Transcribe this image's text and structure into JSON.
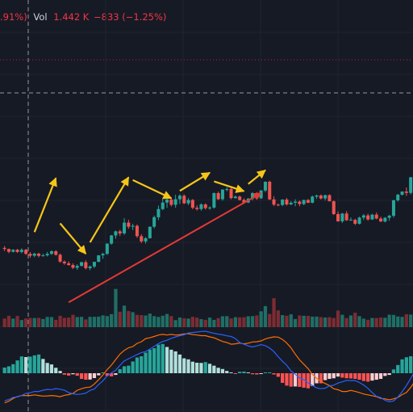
{
  "header": {
    "change_pct_fragment": ".91%)",
    "vol_label": "Vol",
    "vol_value": "1.442 K",
    "vol_change": "−833 (−1.25%)"
  },
  "colors": {
    "background": "#161a25",
    "grid": "#1f2430",
    "up": "#26a69a",
    "down": "#ef5350",
    "vol_up": "#1f6f66",
    "vol_down": "#7d2c33",
    "macd_line": "#2962ff",
    "signal_line": "#ff6d00",
    "hist_up_strong": "#26a69a",
    "hist_up_weak": "#b2dfdb",
    "hist_down_strong": "#ff5252",
    "hist_down_weak": "#ffcdd2",
    "annotation_yellow": "#f5c518",
    "annotation_red": "#e53935",
    "crosshair": "#9598a1",
    "price_level_dotted": "#c2185b",
    "header_red": "#f23645",
    "header_text": "#d1d4dc"
  },
  "chart_data": [
    {
      "type": "candlestick",
      "role": "price",
      "y_range": [
        0,
        100
      ],
      "candles": [
        [
          31.8,
          32.8,
          30.1,
          31.2
        ],
        [
          31.2,
          31.4,
          28.9,
          29.7
        ],
        [
          29.7,
          31.1,
          29.3,
          30.8
        ],
        [
          30.8,
          31.3,
          29.1,
          29.6
        ],
        [
          29.6,
          31.6,
          28.9,
          30.8
        ],
        [
          30.8,
          31.3,
          28.0,
          28.6
        ],
        [
          28.6,
          29.6,
          26.5,
          27.6
        ],
        [
          27.6,
          29.2,
          26.8,
          28.7
        ],
        [
          28.7,
          29.2,
          26.7,
          27.5
        ],
        [
          27.5,
          28.7,
          27.1,
          27.8
        ],
        [
          27.8,
          29.6,
          27.2,
          28.6
        ],
        [
          28.6,
          30.5,
          28.0,
          30.0
        ],
        [
          30.0,
          30.6,
          27.6,
          28.1
        ],
        [
          28.1,
          28.8,
          23.8,
          24.4
        ],
        [
          24.4,
          25.1,
          22.7,
          23.5
        ],
        [
          23.5,
          24.6,
          22.2,
          22.6
        ],
        [
          22.6,
          23.5,
          20.4,
          21.1
        ],
        [
          21.1,
          23.0,
          20.0,
          22.1
        ],
        [
          22.1,
          24.4,
          21.8,
          24.1
        ],
        [
          24.1,
          25.1,
          20.2,
          20.9
        ],
        [
          20.9,
          22.3,
          19.8,
          21.8
        ],
        [
          21.8,
          24.3,
          20.9,
          24.3
        ],
        [
          24.3,
          27.9,
          24.1,
          27.8
        ],
        [
          27.8,
          29.2,
          25.9,
          28.6
        ],
        [
          28.6,
          34.2,
          28.0,
          34.1
        ],
        [
          34.1,
          38.8,
          33.5,
          38.5
        ],
        [
          38.5,
          41.1,
          36.8,
          40.7
        ],
        [
          40.7,
          41.6,
          38.2,
          39.6
        ],
        [
          39.6,
          47.8,
          38.8,
          45.4
        ],
        [
          45.4,
          46.9,
          42.1,
          43.2
        ],
        [
          43.2,
          44.8,
          41.4,
          43.7
        ],
        [
          43.7,
          44.4,
          37.2,
          38.1
        ],
        [
          38.1,
          39.2,
          34.4,
          35.3
        ],
        [
          35.3,
          37.6,
          34.1,
          37.0
        ],
        [
          37.0,
          43.3,
          36.8,
          43.2
        ],
        [
          43.2,
          49.2,
          42.3,
          48.3
        ],
        [
          48.3,
          54.6,
          46.8,
          52.7
        ],
        [
          52.7,
          58.5,
          52.1,
          56.2
        ],
        [
          56.2,
          58.5,
          53.4,
          57.8
        ],
        [
          57.8,
          59.0,
          54.1,
          55.0
        ],
        [
          55.0,
          60.4,
          53.4,
          58.0
        ],
        [
          58.0,
          60.7,
          55.4,
          59.9
        ],
        [
          59.9,
          60.6,
          55.4,
          55.8
        ],
        [
          55.8,
          58.6,
          54.8,
          57.6
        ],
        [
          57.6,
          58.1,
          52.6,
          53.4
        ],
        [
          53.4,
          54.7,
          51.9,
          52.7
        ],
        [
          52.7,
          55.8,
          51.8,
          55.2
        ],
        [
          55.2,
          55.8,
          52.4,
          53.2
        ],
        [
          53.2,
          54.2,
          52.3,
          53.5
        ],
        [
          53.5,
          61.6,
          52.9,
          61.3
        ],
        [
          61.3,
          62.1,
          57.6,
          58.0
        ],
        [
          58.0,
          63.3,
          57.2,
          63.2
        ],
        [
          63.2,
          64.4,
          62.2,
          63.5
        ],
        [
          63.5,
          64.7,
          58.0,
          58.6
        ],
        [
          58.6,
          60.0,
          58.3,
          59.4
        ],
        [
          59.4,
          60.0,
          57.3,
          57.6
        ],
        [
          57.6,
          58.5,
          55.5,
          56.2
        ],
        [
          56.2,
          58.7,
          55.9,
          58.3
        ],
        [
          58.3,
          61.8,
          57.3,
          61.3
        ],
        [
          61.3,
          61.8,
          58.0,
          58.5
        ],
        [
          58.5,
          62.9,
          58.2,
          62.7
        ],
        [
          62.7,
          67.6,
          61.8,
          67.4
        ],
        [
          67.4,
          68.0,
          57.5,
          57.9
        ],
        [
          57.9,
          59.6,
          54.3,
          55.1
        ],
        [
          55.1,
          55.7,
          54.2,
          54.9
        ],
        [
          54.9,
          58.0,
          54.3,
          57.8
        ],
        [
          57.8,
          58.7,
          54.6,
          55.2
        ],
        [
          55.2,
          57.0,
          54.8,
          56.1
        ],
        [
          56.1,
          57.9,
          54.2,
          56.7
        ],
        [
          56.7,
          57.3,
          54.2,
          55.4
        ],
        [
          55.4,
          57.7,
          54.8,
          57.6
        ],
        [
          57.6,
          58.1,
          55.9,
          56.1
        ],
        [
          56.1,
          60.0,
          55.8,
          59.4
        ],
        [
          59.4,
          60.5,
          58.2,
          60.0
        ],
        [
          60.0,
          60.6,
          57.8,
          58.4
        ],
        [
          58.4,
          60.4,
          57.3,
          60.2
        ],
        [
          60.2,
          60.6,
          56.8,
          56.9
        ],
        [
          56.9,
          57.3,
          49.5,
          50.0
        ],
        [
          50.0,
          51.4,
          45.9,
          46.1
        ],
        [
          46.1,
          50.6,
          45.2,
          50.3
        ],
        [
          50.3,
          51.6,
          46.3,
          46.7
        ],
        [
          46.7,
          48.2,
          46.6,
          46.9
        ],
        [
          46.9,
          47.5,
          44.1,
          44.8
        ],
        [
          44.8,
          48.6,
          44.4,
          48.1
        ],
        [
          48.1,
          50.1,
          46.8,
          49.3
        ],
        [
          49.3,
          50.2,
          46.4,
          47.1
        ],
        [
          47.1,
          50.1,
          46.9,
          49.7
        ],
        [
          49.7,
          50.9,
          47.2,
          47.6
        ],
        [
          47.6,
          48.6,
          45.8,
          46.0
        ],
        [
          46.0,
          48.4,
          45.5,
          48.0
        ],
        [
          48.0,
          49.6,
          46.4,
          49.1
        ],
        [
          49.1,
          57.7,
          48.1,
          57.4
        ],
        [
          57.4,
          60.9,
          56.7,
          60.4
        ],
        [
          60.4,
          62.2,
          60.0,
          62.1
        ],
        [
          62.1,
          64.3,
          59.8,
          61.4
        ],
        [
          61.4,
          70.0,
          60.5,
          69.8
        ],
        [
          69.8,
          75.2,
          69.4,
          74.4
        ],
        [
          74.4,
          74.8,
          70.6,
          71.5
        ],
        [
          71.5,
          74.1,
          71.5,
          73.3
        ],
        [
          73.3,
          73.6,
          71.3,
          72.0
        ]
      ],
      "annotations": [
        {
          "kind": "arrow",
          "color": "yellow",
          "from": [
            7,
            40.3
          ],
          "to": [
            12,
            69.4
          ]
        },
        {
          "kind": "arrow",
          "color": "yellow",
          "from": [
            13,
            45.0
          ],
          "to": [
            19,
            28.6
          ]
        },
        {
          "kind": "arrow",
          "color": "yellow",
          "from": [
            20,
            34.8
          ],
          "to": [
            29,
            69.8
          ]
        },
        {
          "kind": "arrow",
          "color": "yellow",
          "from": [
            30,
            68.3
          ],
          "to": [
            39,
            58.5
          ]
        },
        {
          "kind": "arrow",
          "color": "yellow",
          "from": [
            41,
            62.5
          ],
          "to": [
            48,
            72.3
          ]
        },
        {
          "kind": "arrow",
          "color": "yellow",
          "from": [
            49,
            67.6
          ],
          "to": [
            56,
            62.3
          ]
        },
        {
          "kind": "arrow",
          "color": "yellow",
          "from": [
            57,
            66.2
          ],
          "to": [
            61,
            73.6
          ]
        },
        {
          "kind": "arrow",
          "color": "red",
          "from": [
            15,
            2.5
          ],
          "to": [
            60,
            61.3
          ]
        }
      ],
      "crosshair_horizontal": 100,
      "dotted_level": 120
    },
    {
      "type": "bar",
      "role": "volume",
      "values": [
        12.7,
        16.6,
        12.5,
        16.4,
        10.4,
        12.7,
        13.4,
        13.3,
        13.6,
        11.9,
        15.0,
        14.7,
        10.7,
        16.6,
        13.5,
        14.0,
        18.0,
        14.8,
        15.1,
        11.3,
        15.1,
        15.1,
        15.4,
        17.2,
        16.2,
        19.0,
        55.7,
        22.5,
        31.4,
        23.6,
        21.8,
        18.0,
        17.6,
        17.0,
        19.8,
        16.1,
        15.0,
        16.7,
        19.2,
        16.2,
        10.3,
        14.1,
        13.0,
        12.5,
        15.1,
        13.9,
        11.7,
        10.7,
        14.0,
        10.7,
        13.2,
        15.9,
        16.1,
        12.7,
        14.6,
        14.3,
        14.5,
        15.9,
        16.1,
        17.1,
        23.1,
        30.7,
        19.3,
        42.2,
        24.5,
        17.6,
        16.7,
        18.7,
        11.9,
        17.1,
        16.6,
        16.5,
        15.4,
        15.4,
        14.6,
        14.1,
        14.5,
        13.4,
        24.2,
        18.1,
        13.3,
        17.1,
        21.1,
        16.1,
        12.4,
        10.8,
        13.4,
        13.3,
        14.0,
        13.7,
        18.2,
        17.9,
        15.6,
        15.1,
        18.9,
        18.3,
        13.4,
        14.8,
        14.7
      ]
    },
    {
      "type": "macd",
      "role": "oscillator",
      "macd": [
        -13.1,
        -12.5,
        -11.5,
        -11.3,
        -10.6,
        -9.6,
        -9.3,
        -8.7,
        -8.7,
        -8.1,
        -7.7,
        -7.8,
        -7.3,
        -7.6,
        -8.1,
        -9.2,
        -9.8,
        -10.1,
        -9.9,
        -9.5,
        -8.2,
        -7.5,
        -5.4,
        -3.6,
        -1.3,
        0.2,
        1.4,
        3.8,
        5.9,
        6.9,
        7.9,
        8.9,
        9.8,
        10.3,
        11.5,
        12.8,
        14.1,
        15.1,
        15.7,
        16.6,
        17.3,
        17.9,
        18.3,
        19.2,
        19.4,
        19.6,
        19.9,
        20.0,
        19.5,
        19.0,
        18.6,
        18.3,
        17.8,
        17.5,
        16.5,
        14.6,
        13.8,
        13.0,
        12.5,
        13.0,
        13.6,
        13.1,
        12.0,
        10.3,
        7.9,
        5.7,
        3.8,
        1.1,
        -0.5,
        -2.2,
        -3.0,
        -4.6,
        -5.8,
        -7.0,
        -7.4,
        -7.1,
        -6.0,
        -5.7,
        -4.7,
        -4.1,
        -3.4,
        -3.5,
        -3.5,
        -4.4,
        -5.6,
        -7.2,
        -9.2,
        -11.0,
        -11.6,
        -12.9,
        -13.6,
        -13.2,
        -11.4,
        -8.8,
        -5.9,
        -2.5,
        0.9,
        3.9,
        6.8
      ],
      "signal": [
        -14.1,
        -13.3,
        -12.0,
        -11.1,
        -10.6,
        -10.6,
        -10.6,
        -10.3,
        -10.6,
        -10.9,
        -10.8,
        -10.6,
        -10.8,
        -11.2,
        -10.5,
        -10.2,
        -9.6,
        -8.1,
        -7.4,
        -6.8,
        -6.6,
        -5.1,
        -3.1,
        -0.9,
        1.7,
        3.9,
        6.5,
        9.1,
        10.9,
        12.1,
        12.7,
        14.2,
        15.0,
        16.5,
        16.9,
        17.5,
        18.2,
        18.5,
        18.2,
        18.5,
        18.2,
        18.3,
        18.7,
        18.8,
        18.4,
        18.2,
        17.9,
        17.9,
        17.3,
        16.9,
        16.0,
        15.1,
        14.6,
        13.8,
        14.0,
        14.4,
        14.0,
        14.3,
        14.9,
        15.0,
        15.4,
        16.3,
        16.9,
        17.3,
        17.2,
        16.1,
        14.4,
        12.1,
        9.1,
        6.4,
        4.3,
        2.2,
        -0.5,
        -2.4,
        -3.9,
        -4.9,
        -5.9,
        -7.4,
        -7.9,
        -8.7,
        -8.7,
        -8.2,
        -8.6,
        -9.2,
        -9.9,
        -10.3,
        -10.7,
        -11.2,
        -12.0,
        -12.2,
        -12.7,
        -12.2,
        -11.5,
        -10.2,
        -9.2,
        -6.8,
        -3.8,
        -0.3,
        3.1
      ],
      "histogram": [
        2.7,
        3.3,
        4.3,
        6.1,
        8.0,
        7.7,
        7.9,
        8.5,
        8.9,
        6.8,
        4.9,
        4.2,
        2.6,
        1.1,
        -0.7,
        -1.1,
        -0.5,
        -1.2,
        -2.7,
        -3.1,
        -3.0,
        -2.3,
        -1.0,
        0.1,
        -1.3,
        -1.5,
        -0.8,
        1.9,
        3.3,
        3.6,
        5.6,
        7.5,
        8.1,
        9.8,
        11.2,
        11.9,
        13.6,
        13.9,
        12.5,
        11.2,
        10.4,
        8.9,
        7.1,
        6.6,
        5.5,
        5.0,
        4.9,
        5.3,
        4.5,
        3.6,
        2.6,
        2.0,
        1.1,
        0.4,
        -0.1,
        0.7,
        0.8,
        0.2,
        -0.5,
        -0.6,
        -0.4,
        0.2,
        0.4,
        -0.6,
        -1.7,
        -4.6,
        -5.9,
        -6.4,
        -6.3,
        -6.5,
        -6.9,
        -7.2,
        -6.1,
        -4.8,
        -4.8,
        -3.3,
        -2.7,
        -2.4,
        -1.6,
        -2.1,
        -2.4,
        -2.5,
        -2.7,
        -3.1,
        -3.7,
        -4.0,
        -3.5,
        -3.1,
        -2.7,
        -1.3,
        -0.8,
        1.8,
        3.9,
        6.6,
        7.6,
        8.1,
        10.5,
        11.9,
        14.0
      ],
      "zero_line": 0
    }
  ]
}
